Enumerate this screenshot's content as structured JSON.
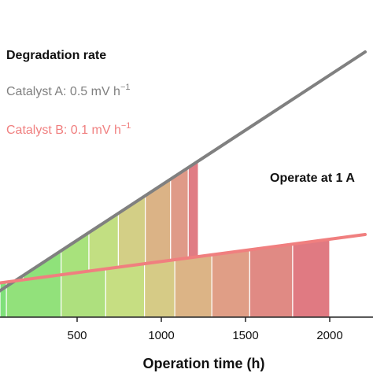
{
  "chart_data": {
    "type": "area",
    "xlabel": "Operation time (h)",
    "ylabel": "",
    "xlim": [
      -20,
      2250
    ],
    "x_ticks": [
      500,
      1000,
      1500,
      2000
    ],
    "grid": false,
    "annotations": {
      "legend_title": "Degradation rate",
      "series_a_label": "Catalyst A: 0.5 mV h",
      "series_b_label": "Catalyst B: 0.1 mV h",
      "rate_exponent": "−1",
      "condition": "Operate at 1 A"
    },
    "series": [
      {
        "name": "Catalyst A",
        "color": "#808080",
        "rate_mV_per_h": 0.5,
        "line_x": [
          -20,
          2250
        ],
        "stop_h": 1220,
        "segment_edges_h": [
          -20,
          180,
          405,
          570,
          745,
          905,
          1055,
          1160,
          1220
        ],
        "segment_colors": [
          "#7fe07a",
          "#8fe27a",
          "#a8e27c",
          "#c2df82",
          "#d3cf86",
          "#dbb386",
          "#df9a88",
          "#e07c84"
        ]
      },
      {
        "name": "Catalyst B",
        "color": "#f07f7f",
        "rate_mV_per_h": 0.1,
        "line_x": [
          -20,
          2250
        ],
        "stop_h": 2000,
        "segment_edges_h": [
          -20,
          80,
          405,
          670,
          900,
          1080,
          1300,
          1525,
          1780,
          2000
        ],
        "segment_colors": [
          "#7fe07a",
          "#92e17b",
          "#aee07e",
          "#c6de82",
          "#d6cb86",
          "#dcb486",
          "#e09e86",
          "#e08a84",
          "#e07a82"
        ]
      }
    ]
  }
}
